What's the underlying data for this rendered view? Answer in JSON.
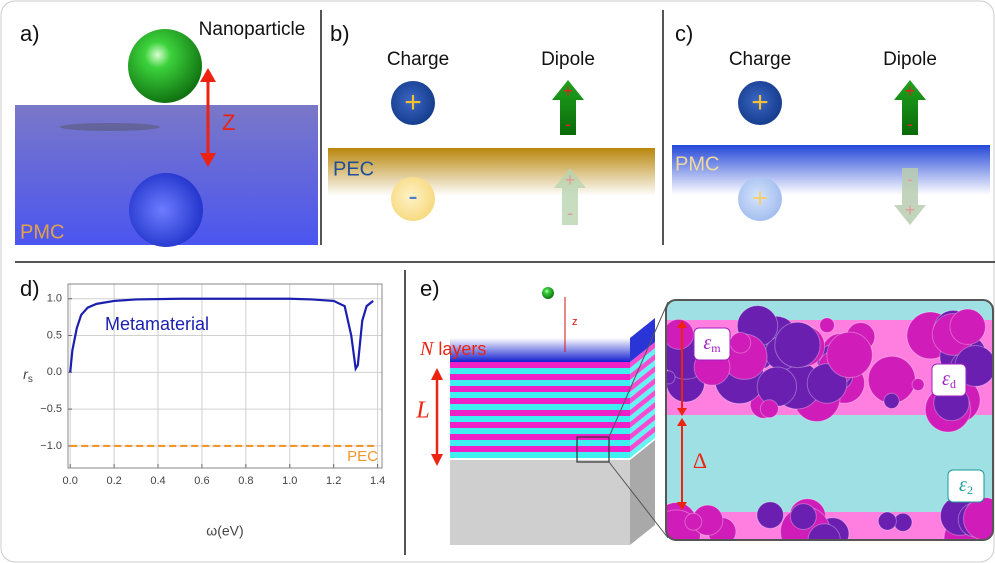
{
  "panel_a": {
    "label": "a)",
    "particle": "Nanoparticle",
    "distance": "Z",
    "medium": "PMC"
  },
  "panel_b": {
    "label": "b)",
    "charge": "Charge",
    "dipole": "Dipole",
    "medium": "PEC",
    "charge_sign": "+",
    "image_sign": "-",
    "dipole_signs": [
      "+",
      "-"
    ],
    "image_dipole_signs": [
      "+",
      "-"
    ]
  },
  "panel_c": {
    "label": "c)",
    "charge": "Charge",
    "dipole": "Dipole",
    "medium": "PMC",
    "charge_sign": "+",
    "image_sign": "+",
    "dipole_signs": [
      "+",
      "-"
    ],
    "image_dipole_signs": [
      "-",
      "+"
    ]
  },
  "panel_d": {
    "label": "d)"
  },
  "chart_data": {
    "type": "line",
    "xlabel": "ω(eV)",
    "ylabel": {
      "symbol": "r",
      "sub": "s"
    },
    "xlim": [
      -0.01,
      1.42
    ],
    "ylim": [
      -1.3,
      1.2
    ],
    "xticks": [
      {
        "value": 0,
        "label": "0.0"
      },
      0.2,
      0.4,
      0.6,
      0.8,
      {
        "value": 1,
        "label": "1.0"
      },
      1.2,
      1.4
    ],
    "yticks": [
      {
        "value": -1,
        "label": "−1.0"
      },
      {
        "value": -0.5,
        "label": "−0.5"
      },
      {
        "value": 0,
        "label": "0.0"
      },
      0.5,
      {
        "value": 1,
        "label": "1.0"
      }
    ],
    "grid": true,
    "series": [
      {
        "name": "Metamaterial",
        "color": "#1a1fb0",
        "dashed": false,
        "x": [
          0.0,
          0.01,
          0.03,
          0.05,
          0.08,
          0.12,
          0.2,
          0.3,
          0.5,
          0.8,
          1.0,
          1.1,
          1.2,
          1.25,
          1.28,
          1.3,
          1.31,
          1.33,
          1.35,
          1.38
        ],
        "values": [
          0.0,
          0.3,
          0.6,
          0.78,
          0.88,
          0.93,
          0.97,
          0.99,
          1.0,
          1.0,
          1.0,
          0.99,
          0.97,
          0.9,
          0.5,
          0.05,
          0.1,
          0.7,
          0.9,
          0.97
        ]
      },
      {
        "name": "PEC",
        "color": "#f0962a",
        "dashed": true,
        "x": [
          0,
          1.4
        ],
        "values": [
          -1,
          -1
        ]
      }
    ]
  },
  "panel_e": {
    "label": "e)",
    "z": "z",
    "n": "N",
    "layers": "layers",
    "thickness": "L",
    "spacing": "Δ",
    "eps_m": {
      "symbol": "ε",
      "sub": "m"
    },
    "eps_d": {
      "symbol": "ε",
      "sub": "d"
    },
    "eps_2": {
      "symbol": "ε",
      "sub": "2"
    }
  }
}
